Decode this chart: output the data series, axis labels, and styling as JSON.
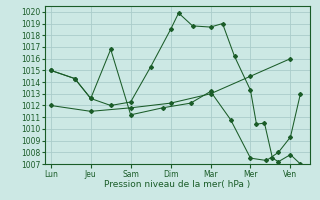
{
  "xlabel": "Pression niveau de la mer( hPa )",
  "background_color": "#cce8e4",
  "grid_color": "#aaccca",
  "line_color": "#1a5c28",
  "ylim": [
    1007,
    1020.5
  ],
  "yticks": [
    1007,
    1008,
    1009,
    1010,
    1011,
    1012,
    1013,
    1014,
    1015,
    1016,
    1017,
    1018,
    1019,
    1020
  ],
  "xtick_labels": [
    "Lun",
    "Jeu",
    "Sam",
    "Dim",
    "Mar",
    "Mer",
    "Ven"
  ],
  "xtick_positions": [
    0,
    1,
    2,
    3,
    4,
    5,
    6
  ],
  "xlim": [
    -0.15,
    6.5
  ],
  "series": [
    {
      "x": [
        0,
        0.6,
        1,
        1.5,
        2,
        2.5,
        3,
        3.2,
        3.55,
        4,
        4.3,
        4.6,
        5,
        5.15,
        5.35,
        5.55,
        5.7,
        6.0,
        6.25
      ],
      "y": [
        1015,
        1014.3,
        1012.6,
        1012,
        1012.3,
        1015.3,
        1018.5,
        1019.9,
        1018.8,
        1018.7,
        1019.0,
        1016.2,
        1013.3,
        1010.4,
        1010.5,
        1007.5,
        1007.2,
        1007.8,
        1007.0
      ]
    },
    {
      "x": [
        0,
        1,
        2,
        3,
        4,
        5,
        6
      ],
      "y": [
        1012,
        1011.5,
        1011.8,
        1012.2,
        1013.0,
        1014.5,
        1016.0
      ]
    },
    {
      "x": [
        0,
        0.6,
        1,
        1.5,
        2,
        2.8,
        3.5,
        4,
        4.5,
        5,
        5.4,
        5.7,
        6.0,
        6.25
      ],
      "y": [
        1015,
        1014.3,
        1012.6,
        1016.8,
        1011.2,
        1011.8,
        1012.2,
        1013.2,
        1010.8,
        1007.5,
        1007.3,
        1008.0,
        1009.3,
        1013.0
      ]
    }
  ]
}
